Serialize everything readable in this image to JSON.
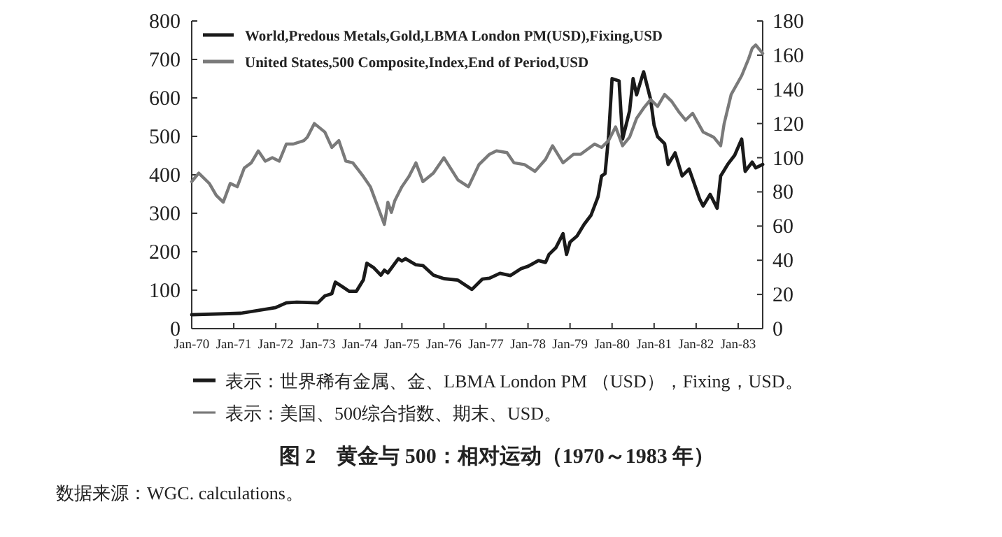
{
  "chart_data": {
    "type": "line",
    "title": "图 2　黄金与 500：相对运动（1970～1983 年）",
    "xlim": [
      "1970-01",
      "1983-08"
    ],
    "xticks": [
      {
        "value": "1970-01",
        "label": "Jan-70"
      },
      {
        "value": "1971-01",
        "label": "Jan-71"
      },
      {
        "value": "1972-01",
        "label": "Jan-72"
      },
      {
        "value": "1973-01",
        "label": "Jan-73"
      },
      {
        "value": "1974-01",
        "label": "Jan-74"
      },
      {
        "value": "1975-01",
        "label": "Jan-75"
      },
      {
        "value": "1976-01",
        "label": "Jan-76"
      },
      {
        "value": "1977-01",
        "label": "Jan-77"
      },
      {
        "value": "1978-01",
        "label": "Jan-78"
      },
      {
        "value": "1979-01",
        "label": "Jan-79"
      },
      {
        "value": "1980-01",
        "label": "Jan-80"
      },
      {
        "value": "1981-01",
        "label": "Jan-81"
      },
      {
        "value": "1982-01",
        "label": "Jan-82"
      },
      {
        "value": "1983-01",
        "label": "Jan-83"
      }
    ],
    "ylim": [
      0,
      800
    ],
    "yticks": [
      0,
      100,
      200,
      300,
      400,
      500,
      600,
      700,
      800
    ],
    "y2lim": [
      0,
      180
    ],
    "y2ticks": [
      0,
      20,
      40,
      60,
      80,
      100,
      120,
      140,
      160,
      180
    ],
    "legend": "top left",
    "series": [
      {
        "name": "World,Predous Metals,Gold,LBMA London PM(USD),Fixing,USD",
        "color": "#1a1a1a",
        "x": [
          "1970-01",
          "1971-03",
          "1972-01",
          "1972-04",
          "1972-07",
          "1973-01",
          "1973-03",
          "1973-05",
          "1973-06",
          "1973-08",
          "1973-10",
          "1973-12",
          "1974-02",
          "1974-03",
          "1974-05",
          "1974-07",
          "1974-08",
          "1974-09",
          "1974-12",
          "1975-01",
          "1975-02",
          "1975-05",
          "1975-07",
          "1975-10",
          "1976-01",
          "1976-05",
          "1976-09",
          "1976-12",
          "1977-02",
          "1977-05",
          "1977-08",
          "1977-11",
          "1978-01",
          "1978-04",
          "1978-06",
          "1978-07",
          "1978-09",
          "1978-11",
          "1978-12",
          "1979-01",
          "1979-03",
          "1979-05",
          "1979-07",
          "1979-09",
          "1979-10",
          "1979-11",
          "1979-12",
          "1980-01",
          "1980-03",
          "1980-04",
          "1980-06",
          "1980-07",
          "1980-08",
          "1980-10",
          "1980-12",
          "1981-01",
          "1981-02",
          "1981-04",
          "1981-05",
          "1981-07",
          "1981-09",
          "1981-11",
          "1982-02",
          "1982-03",
          "1982-05",
          "1982-07",
          "1982-08",
          "1982-10",
          "1982-12",
          "1983-02",
          "1983-03",
          "1983-05",
          "1983-06",
          "1983-08"
        ],
        "values": [
          36,
          40,
          55,
          67,
          69,
          67,
          85,
          91,
          121,
          109,
          97,
          97,
          127,
          170,
          158,
          139,
          152,
          145,
          182,
          176,
          182,
          166,
          164,
          139,
          130,
          126,
          102,
          129,
          131,
          144,
          138,
          156,
          162,
          177,
          172,
          193,
          211,
          247,
          193,
          225,
          241,
          271,
          295,
          343,
          397,
          403,
          499,
          650,
          644,
          493,
          566,
          650,
          608,
          668,
          596,
          529,
          499,
          481,
          427,
          457,
          397,
          415,
          337,
          319,
          349,
          313,
          397,
          427,
          451,
          493,
          409,
          433,
          418,
          427
        ]
      },
      {
        "name": "United States,500 Composite,Index,End of Period,USD",
        "color": "#7a7a7a",
        "axis": "y2",
        "x": [
          "1970-01",
          "1970-03",
          "1970-06",
          "1970-08",
          "1970-10",
          "1970-12",
          "1971-02",
          "1971-04",
          "1971-06",
          "1971-08",
          "1971-10",
          "1971-12",
          "1972-02",
          "1972-04",
          "1972-06",
          "1972-09",
          "1972-10",
          "1972-12",
          "1973-03",
          "1973-05",
          "1973-07",
          "1973-09",
          "1973-11",
          "1974-02",
          "1974-04",
          "1974-06",
          "1974-08",
          "1974-09",
          "1974-10",
          "1974-11",
          "1975-01",
          "1975-03",
          "1975-05",
          "1975-07",
          "1975-10",
          "1976-01",
          "1976-05",
          "1976-08",
          "1976-11",
          "1977-02",
          "1977-04",
          "1977-07",
          "1977-09",
          "1977-12",
          "1978-03",
          "1978-06",
          "1978-08",
          "1978-11",
          "1979-02",
          "1979-04",
          "1979-08",
          "1979-10",
          "1979-12",
          "1980-02",
          "1980-04",
          "1980-06",
          "1980-08",
          "1980-10",
          "1980-12",
          "1981-02",
          "1981-04",
          "1981-06",
          "1981-08",
          "1981-10",
          "1981-12",
          "1982-03",
          "1982-06",
          "1982-08",
          "1982-09",
          "1982-11",
          "1983-02",
          "1983-04",
          "1983-05",
          "1983-06",
          "1983-08"
        ],
        "values": [
          86,
          91,
          85,
          78,
          74,
          85,
          83,
          94,
          97,
          104,
          98,
          100,
          98,
          108,
          108,
          110,
          112,
          120,
          115,
          106,
          110,
          98,
          97,
          89,
          83,
          72,
          61,
          74,
          68,
          75,
          83,
          89,
          97,
          86,
          91,
          100,
          87,
          83,
          96,
          102,
          104,
          103,
          97,
          96,
          92,
          99,
          107,
          97,
          102,
          102,
          108,
          106,
          110,
          118,
          107,
          112,
          123,
          129,
          134,
          130,
          137,
          133,
          127,
          122,
          126,
          115,
          112,
          107,
          120,
          137,
          148,
          158,
          164,
          166,
          161
        ]
      }
    ],
    "annotations": [
      "表示：世界稀有金属、金、LBMA London PM （USD），Fixing，USD。",
      "表示：美国、500综合指数、期末、USD。",
      "数据来源：WGC. calculations。"
    ]
  }
}
